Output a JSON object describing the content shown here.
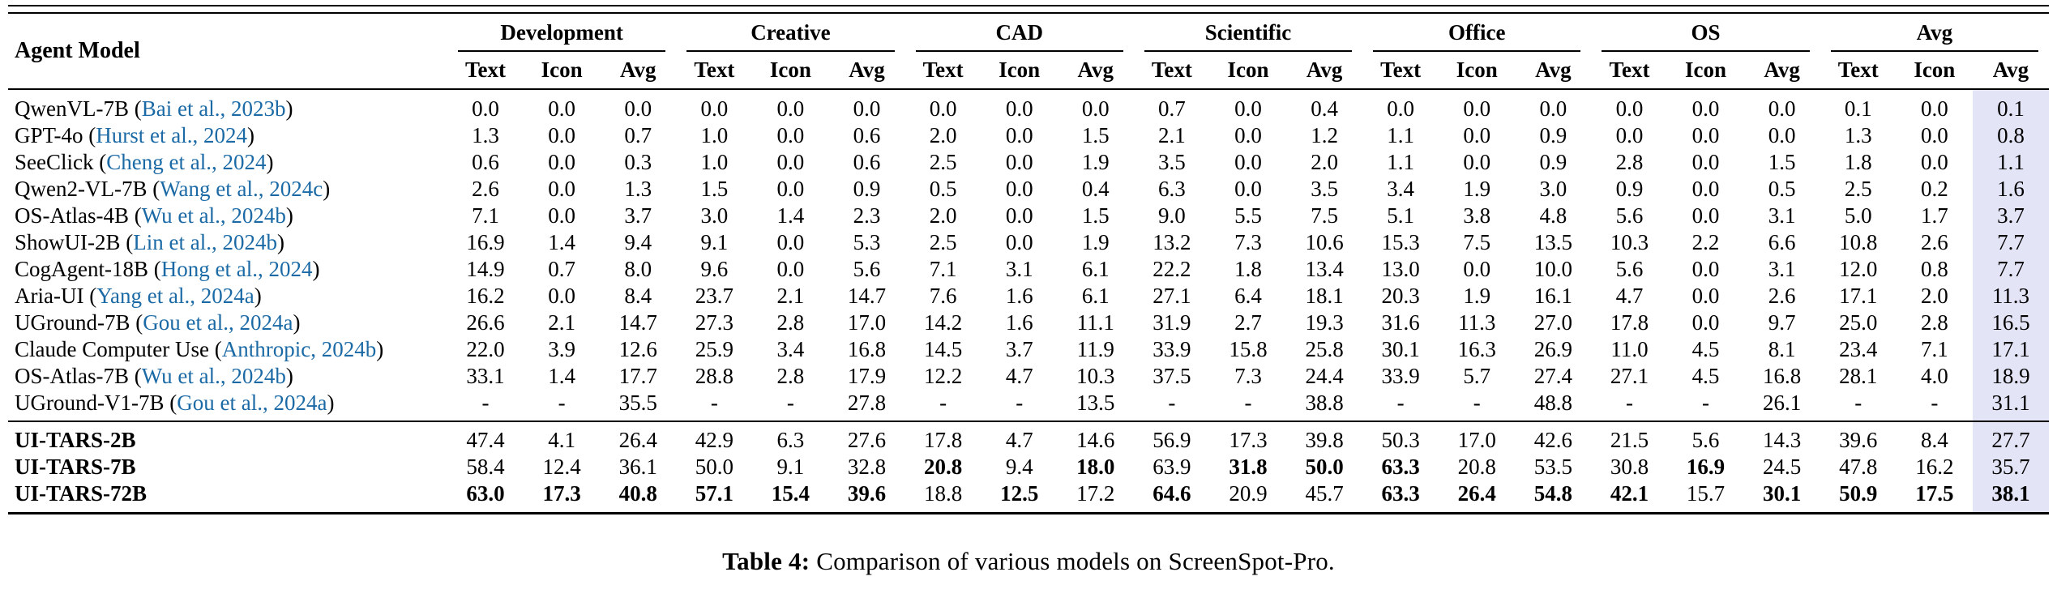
{
  "table": {
    "first_col_header": "Agent Model",
    "groups": [
      "Development",
      "Creative",
      "CAD",
      "Scientific",
      "Office",
      "OS",
      "Avg"
    ],
    "subheaders": [
      "Text",
      "Icon",
      "Avg"
    ],
    "highlight_color": "#e4e4f7",
    "link_color": "#1b6aa5",
    "rows": [
      {
        "model": "QwenVL-7B",
        "cite": "Bai et al., 2023b",
        "bold_model": false,
        "section": "baseline",
        "values": [
          "0.0",
          "0.0",
          "0.0",
          "0.0",
          "0.0",
          "0.0",
          "0.0",
          "0.0",
          "0.0",
          "0.7",
          "0.0",
          "0.4",
          "0.0",
          "0.0",
          "0.0",
          "0.0",
          "0.0",
          "0.0",
          "0.1",
          "0.0",
          "0.1"
        ],
        "bold": []
      },
      {
        "model": "GPT-4o",
        "cite": "Hurst et al., 2024",
        "bold_model": false,
        "section": "baseline",
        "values": [
          "1.3",
          "0.0",
          "0.7",
          "1.0",
          "0.0",
          "0.6",
          "2.0",
          "0.0",
          "1.5",
          "2.1",
          "0.0",
          "1.2",
          "1.1",
          "0.0",
          "0.9",
          "0.0",
          "0.0",
          "0.0",
          "1.3",
          "0.0",
          "0.8"
        ],
        "bold": []
      },
      {
        "model": "SeeClick",
        "cite": "Cheng et al., 2024",
        "bold_model": false,
        "section": "baseline",
        "values": [
          "0.6",
          "0.0",
          "0.3",
          "1.0",
          "0.0",
          "0.6",
          "2.5",
          "0.0",
          "1.9",
          "3.5",
          "0.0",
          "2.0",
          "1.1",
          "0.0",
          "0.9",
          "2.8",
          "0.0",
          "1.5",
          "1.8",
          "0.0",
          "1.1"
        ],
        "bold": []
      },
      {
        "model": "Qwen2-VL-7B",
        "cite": "Wang et al., 2024c",
        "bold_model": false,
        "section": "baseline",
        "values": [
          "2.6",
          "0.0",
          "1.3",
          "1.5",
          "0.0",
          "0.9",
          "0.5",
          "0.0",
          "0.4",
          "6.3",
          "0.0",
          "3.5",
          "3.4",
          "1.9",
          "3.0",
          "0.9",
          "0.0",
          "0.5",
          "2.5",
          "0.2",
          "1.6"
        ],
        "bold": []
      },
      {
        "model": "OS-Atlas-4B",
        "cite": "Wu et al., 2024b",
        "bold_model": false,
        "section": "baseline",
        "values": [
          "7.1",
          "0.0",
          "3.7",
          "3.0",
          "1.4",
          "2.3",
          "2.0",
          "0.0",
          "1.5",
          "9.0",
          "5.5",
          "7.5",
          "5.1",
          "3.8",
          "4.8",
          "5.6",
          "0.0",
          "3.1",
          "5.0",
          "1.7",
          "3.7"
        ],
        "bold": []
      },
      {
        "model": "ShowUI-2B",
        "cite": "Lin et al., 2024b",
        "bold_model": false,
        "section": "baseline",
        "values": [
          "16.9",
          "1.4",
          "9.4",
          "9.1",
          "0.0",
          "5.3",
          "2.5",
          "0.0",
          "1.9",
          "13.2",
          "7.3",
          "10.6",
          "15.3",
          "7.5",
          "13.5",
          "10.3",
          "2.2",
          "6.6",
          "10.8",
          "2.6",
          "7.7"
        ],
        "bold": []
      },
      {
        "model": "CogAgent-18B",
        "cite": "Hong et al., 2024",
        "bold_model": false,
        "section": "baseline",
        "values": [
          "14.9",
          "0.7",
          "8.0",
          "9.6",
          "0.0",
          "5.6",
          "7.1",
          "3.1",
          "6.1",
          "22.2",
          "1.8",
          "13.4",
          "13.0",
          "0.0",
          "10.0",
          "5.6",
          "0.0",
          "3.1",
          "12.0",
          "0.8",
          "7.7"
        ],
        "bold": []
      },
      {
        "model": "Aria-UI",
        "cite": "Yang et al., 2024a",
        "bold_model": false,
        "section": "baseline",
        "values": [
          "16.2",
          "0.0",
          "8.4",
          "23.7",
          "2.1",
          "14.7",
          "7.6",
          "1.6",
          "6.1",
          "27.1",
          "6.4",
          "18.1",
          "20.3",
          "1.9",
          "16.1",
          "4.7",
          "0.0",
          "2.6",
          "17.1",
          "2.0",
          "11.3"
        ],
        "bold": []
      },
      {
        "model": "UGround-7B",
        "cite": "Gou et al., 2024a",
        "bold_model": false,
        "section": "baseline",
        "values": [
          "26.6",
          "2.1",
          "14.7",
          "27.3",
          "2.8",
          "17.0",
          "14.2",
          "1.6",
          "11.1",
          "31.9",
          "2.7",
          "19.3",
          "31.6",
          "11.3",
          "27.0",
          "17.8",
          "0.0",
          "9.7",
          "25.0",
          "2.8",
          "16.5"
        ],
        "bold": []
      },
      {
        "model": "Claude Computer Use",
        "cite": "Anthropic, 2024b",
        "bold_model": false,
        "section": "baseline",
        "values": [
          "22.0",
          "3.9",
          "12.6",
          "25.9",
          "3.4",
          "16.8",
          "14.5",
          "3.7",
          "11.9",
          "33.9",
          "15.8",
          "25.8",
          "30.1",
          "16.3",
          "26.9",
          "11.0",
          "4.5",
          "8.1",
          "23.4",
          "7.1",
          "17.1"
        ],
        "bold": []
      },
      {
        "model": "OS-Atlas-7B",
        "cite": "Wu et al., 2024b",
        "bold_model": false,
        "section": "baseline",
        "values": [
          "33.1",
          "1.4",
          "17.7",
          "28.8",
          "2.8",
          "17.9",
          "12.2",
          "4.7",
          "10.3",
          "37.5",
          "7.3",
          "24.4",
          "33.9",
          "5.7",
          "27.4",
          "27.1",
          "4.5",
          "16.8",
          "28.1",
          "4.0",
          "18.9"
        ],
        "bold": []
      },
      {
        "model": "UGround-V1-7B",
        "cite": "Gou et al., 2024a",
        "bold_model": false,
        "section": "baseline",
        "values": [
          "-",
          "-",
          "35.5",
          "-",
          "-",
          "27.8",
          "-",
          "-",
          "13.5",
          "-",
          "-",
          "38.8",
          "-",
          "-",
          "48.8",
          "-",
          "-",
          "26.1",
          "-",
          "-",
          "31.1"
        ],
        "bold": []
      },
      {
        "model": "UI-TARS-2B",
        "cite": null,
        "bold_model": true,
        "section": "ours",
        "values": [
          "47.4",
          "4.1",
          "26.4",
          "42.9",
          "6.3",
          "27.6",
          "17.8",
          "4.7",
          "14.6",
          "56.9",
          "17.3",
          "39.8",
          "50.3",
          "17.0",
          "42.6",
          "21.5",
          "5.6",
          "14.3",
          "39.6",
          "8.4",
          "27.7"
        ],
        "bold": []
      },
      {
        "model": "UI-TARS-7B",
        "cite": null,
        "bold_model": true,
        "section": "ours",
        "values": [
          "58.4",
          "12.4",
          "36.1",
          "50.0",
          "9.1",
          "32.8",
          "20.8",
          "9.4",
          "18.0",
          "63.9",
          "31.8",
          "50.0",
          "63.3",
          "20.8",
          "53.5",
          "30.8",
          "16.9",
          "24.5",
          "47.8",
          "16.2",
          "35.7"
        ],
        "bold": [
          6,
          8,
          10,
          11,
          12,
          16
        ]
      },
      {
        "model": "UI-TARS-72B",
        "cite": null,
        "bold_model": true,
        "section": "ours",
        "values": [
          "63.0",
          "17.3",
          "40.8",
          "57.1",
          "15.4",
          "39.6",
          "18.8",
          "12.5",
          "17.2",
          "64.6",
          "20.9",
          "45.7",
          "63.3",
          "26.4",
          "54.8",
          "42.1",
          "15.7",
          "30.1",
          "50.9",
          "17.5",
          "38.1"
        ],
        "bold": [
          0,
          1,
          2,
          3,
          4,
          5,
          7,
          9,
          12,
          13,
          14,
          15,
          17,
          18,
          19,
          20
        ]
      }
    ],
    "caption_label": "Table 4:",
    "caption_text": "Comparison of various models on ScreenSpot-Pro."
  }
}
